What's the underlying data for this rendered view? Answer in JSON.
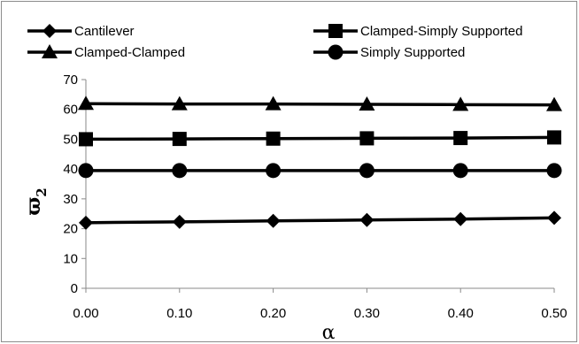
{
  "chart_data": {
    "type": "line",
    "title": "",
    "xlabel": "α",
    "ylabel": "ϖ",
    "ylabel_subscript": "2",
    "x": [
      0.0,
      0.1,
      0.2,
      0.3,
      0.4,
      0.5
    ],
    "x_tick_labels": [
      "0.00",
      "0.10",
      "0.20",
      "0.30",
      "0.40",
      "0.50"
    ],
    "y_ticks": [
      0,
      10,
      20,
      30,
      40,
      50,
      60,
      70
    ],
    "ylim": [
      0,
      70
    ],
    "grid": false,
    "legend_placement": "top",
    "series": [
      {
        "name": "Cantilever",
        "marker": "diamond",
        "values": [
          22.0,
          22.3,
          22.6,
          22.9,
          23.2,
          23.6
        ]
      },
      {
        "name": "Clamped-Simply Supported",
        "marker": "square",
        "values": [
          50.0,
          50.1,
          50.2,
          50.3,
          50.4,
          50.6
        ]
      },
      {
        "name": "Clamped-Clamped",
        "marker": "triangle",
        "values": [
          61.9,
          61.8,
          61.8,
          61.7,
          61.6,
          61.5
        ]
      },
      {
        "name": "Simply Supported",
        "marker": "circle",
        "values": [
          39.5,
          39.5,
          39.5,
          39.5,
          39.5,
          39.5
        ]
      }
    ]
  }
}
